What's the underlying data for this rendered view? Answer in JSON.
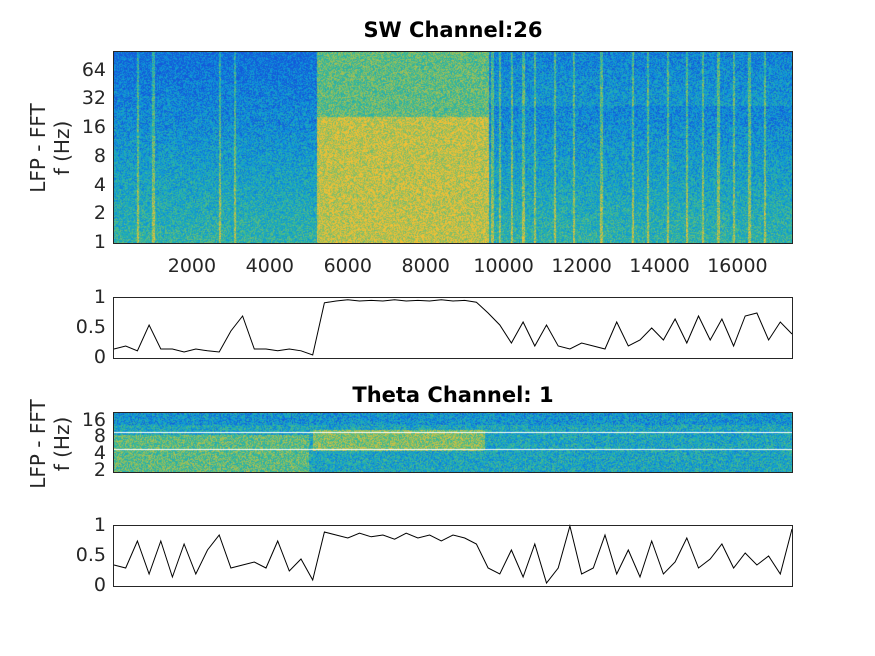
{
  "chart_data": [
    {
      "type": "heatmap",
      "title": "SW Channel:26",
      "ylabel_lines": [
        "LFP - FFT",
        "f (Hz)"
      ],
      "xlim": [
        0,
        17400
      ],
      "ylim_hz": [
        1,
        100
      ],
      "yscale": "log2",
      "xticks": [
        2000,
        4000,
        6000,
        8000,
        10000,
        12000,
        14000,
        16000
      ],
      "xtick_labels": [
        "2000",
        "4000",
        "6000",
        "8000",
        "10000",
        "12000",
        "14000",
        "16000"
      ],
      "yticks": [
        1,
        2,
        4,
        8,
        16,
        32,
        64
      ],
      "ytick_labels": [
        "1",
        "2",
        "4",
        "8",
        "16",
        "32",
        "64"
      ],
      "high_power_segments": [
        [
          5200,
          9600
        ]
      ],
      "transient_stripes": [
        600,
        1000,
        2700,
        3100,
        9700,
        9900,
        10200,
        10500,
        10800,
        11300,
        11800,
        12500,
        13300,
        13700,
        14200,
        14700,
        15100,
        15500,
        15900,
        16300,
        16700
      ]
    },
    {
      "type": "line",
      "ylim": [
        0,
        1
      ],
      "xlim": [
        0,
        17400
      ],
      "yticks": [
        0,
        0.5,
        1
      ],
      "ytick_labels": [
        "0",
        "0.5",
        "1"
      ],
      "x_step": 300,
      "values": [
        0.15,
        0.2,
        0.12,
        0.55,
        0.15,
        0.15,
        0.1,
        0.15,
        0.12,
        0.1,
        0.45,
        0.7,
        0.15,
        0.15,
        0.12,
        0.15,
        0.12,
        0.05,
        0.92,
        0.95,
        0.97,
        0.95,
        0.96,
        0.95,
        0.97,
        0.95,
        0.96,
        0.95,
        0.97,
        0.95,
        0.96,
        0.93,
        0.75,
        0.55,
        0.25,
        0.6,
        0.2,
        0.55,
        0.2,
        0.15,
        0.25,
        0.2,
        0.15,
        0.6,
        0.2,
        0.3,
        0.5,
        0.3,
        0.65,
        0.25,
        0.7,
        0.3,
        0.65,
        0.2,
        0.7,
        0.75,
        0.3,
        0.6,
        0.4
      ]
    },
    {
      "type": "heatmap",
      "title": "Theta Channel: 1",
      "ylabel_lines": [
        "LFP - FFT",
        "f (Hz)"
      ],
      "xlim": [
        0,
        17400
      ],
      "ylim_hz": [
        1.9,
        22
      ],
      "yscale": "log2",
      "yticks": [
        2,
        4,
        8,
        16
      ],
      "ytick_labels": [
        "2",
        "4",
        "8",
        "16"
      ],
      "threshold_lines_hz": [
        5,
        10
      ],
      "high_power_segments": [
        [
          5100,
          9500
        ]
      ],
      "low_band_active_segments": [
        [
          0,
          5000
        ]
      ]
    },
    {
      "type": "line",
      "ylim": [
        0,
        1
      ],
      "xlim": [
        0,
        17400
      ],
      "yticks": [
        0,
        0.5,
        1
      ],
      "ytick_labels": [
        "0",
        "0.5",
        "1"
      ],
      "x_step": 300,
      "values": [
        0.35,
        0.3,
        0.75,
        0.2,
        0.75,
        0.15,
        0.7,
        0.2,
        0.6,
        0.85,
        0.3,
        0.35,
        0.4,
        0.3,
        0.75,
        0.25,
        0.45,
        0.1,
        0.9,
        0.85,
        0.8,
        0.88,
        0.82,
        0.85,
        0.78,
        0.88,
        0.8,
        0.85,
        0.75,
        0.85,
        0.8,
        0.7,
        0.3,
        0.2,
        0.6,
        0.15,
        0.7,
        0.05,
        0.3,
        1.0,
        0.2,
        0.3,
        0.85,
        0.2,
        0.6,
        0.15,
        0.75,
        0.2,
        0.4,
        0.8,
        0.3,
        0.45,
        0.7,
        0.3,
        0.55,
        0.35,
        0.5,
        0.2,
        0.95
      ]
    }
  ]
}
